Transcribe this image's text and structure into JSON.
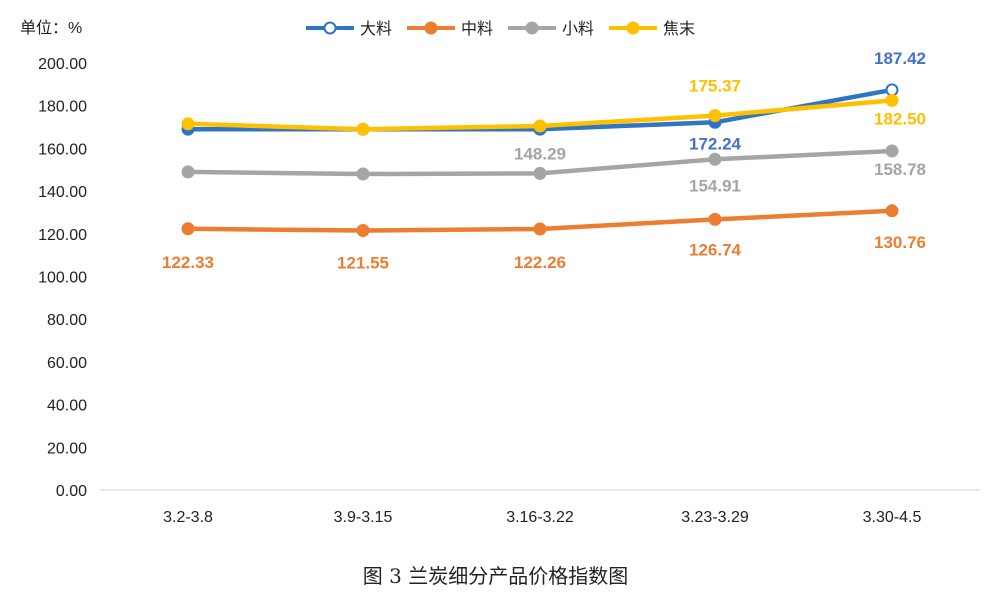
{
  "caption": "图 3  兰炭细分产品价格指数图",
  "chart_data": {
    "type": "line",
    "unit_label": "单位：%",
    "categories": [
      "3.2-3.8",
      "3.9-3.15",
      "3.16-3.22",
      "3.23-3.29",
      "3.30-4.5"
    ],
    "ylim": [
      0,
      200
    ],
    "yticks": [
      "0.00",
      "20.00",
      "40.00",
      "60.00",
      "80.00",
      "100.00",
      "120.00",
      "140.00",
      "160.00",
      "180.00",
      "200.00"
    ],
    "legend_position": "top",
    "grid": false,
    "series": [
      {
        "name": "大料",
        "color": "#2E75C4",
        "values": [
          169.0,
          169.0,
          169.0,
          172.24,
          187.42
        ],
        "labels": [
          null,
          null,
          null,
          "172.24",
          "187.42"
        ],
        "label_color": "#4472C4"
      },
      {
        "name": "中料",
        "color": "#ED7D31",
        "values": [
          122.33,
          121.55,
          122.26,
          126.74,
          130.76
        ],
        "labels": [
          "122.33",
          "121.55",
          "122.26",
          "126.74",
          "130.76"
        ],
        "label_color": "#ED7D31"
      },
      {
        "name": "小料",
        "color": "#A5A5A5",
        "values": [
          149.0,
          148.0,
          148.29,
          154.91,
          158.78
        ],
        "labels": [
          null,
          null,
          "148.29",
          "154.91",
          "158.78"
        ],
        "label_color": "#A5A5A5"
      },
      {
        "name": "焦末",
        "color": "#FFC000",
        "values": [
          171.5,
          169.0,
          170.5,
          175.37,
          182.5
        ],
        "labels": [
          null,
          null,
          null,
          "175.37",
          "182.50"
        ],
        "label_color": "#FFC000"
      }
    ]
  }
}
